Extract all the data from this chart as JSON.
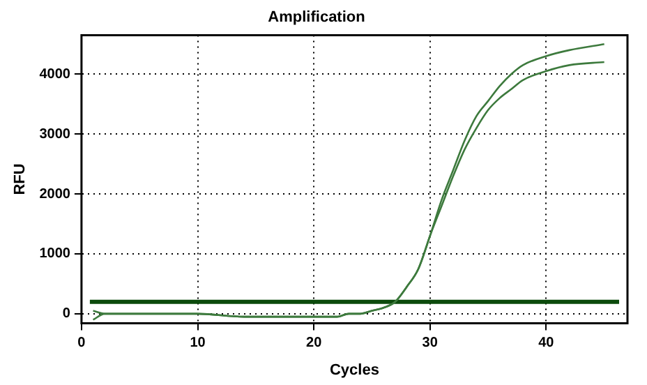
{
  "chart_data": {
    "type": "line",
    "title": "Amplification",
    "xlabel": "Cycles",
    "ylabel": "RFU",
    "xlim": [
      0,
      47
    ],
    "xticks": [
      0,
      10,
      20,
      30,
      40
    ],
    "ylim": [
      -160,
      4650
    ],
    "yticks": [
      0,
      1000,
      2000,
      3000,
      4000
    ],
    "grid": true,
    "legend": false,
    "marker": "none",
    "line_style": "solid",
    "series": [
      {
        "color": "#3d7a3d",
        "x": [
          1,
          2,
          4,
          7,
          10,
          14,
          18,
          20,
          22,
          23,
          24,
          25,
          26,
          27,
          28,
          29,
          30,
          31,
          32,
          33,
          34,
          35,
          36,
          37,
          38,
          40,
          42,
          45
        ],
        "values": [
          50,
          0,
          0,
          0,
          0,
          -50,
          -50,
          -50,
          -50,
          0,
          0,
          50,
          100,
          200,
          450,
          750,
          1300,
          1900,
          2400,
          2900,
          3300,
          3550,
          3800,
          4000,
          4150,
          4300,
          4400,
          4500
        ]
      },
      {
        "color": "#3d7a3d",
        "x": [
          1,
          2,
          4,
          7,
          10,
          14,
          18,
          20,
          22,
          23,
          24,
          25,
          26,
          27,
          28,
          29,
          30,
          31,
          32,
          33,
          34,
          35,
          36,
          37,
          38,
          40,
          42,
          45
        ],
        "values": [
          -100,
          0,
          0,
          0,
          0,
          -50,
          -50,
          -50,
          -50,
          0,
          0,
          50,
          100,
          200,
          450,
          750,
          1300,
          1800,
          2300,
          2750,
          3100,
          3400,
          3600,
          3750,
          3900,
          4050,
          4150,
          4200
        ]
      }
    ],
    "ref_lines": [
      {
        "axis": "y",
        "value": 200,
        "color": "#0b4a0b"
      }
    ]
  }
}
